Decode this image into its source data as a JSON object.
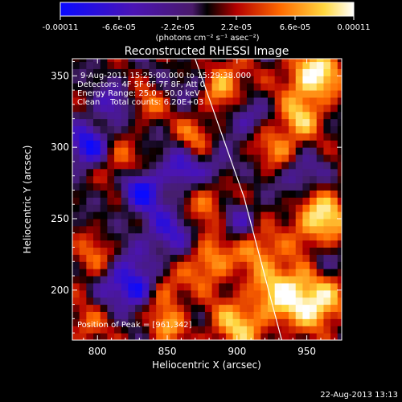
{
  "colorbar": {
    "tick_labels": [
      "-0.00011",
      "-6.6e-05",
      "-2.2e-05",
      "2.2e-05",
      "6.6e-05",
      "0.00011"
    ],
    "unit_label": "(photons cm⁻² s⁻¹ asec⁻²)"
  },
  "chart_data": {
    "type": "heatmap",
    "title": "Reconstructed RHESSI Image",
    "xlabel": "Heliocentric X (arcsec)",
    "ylabel": "Heliocentric Y (arcsec)",
    "xlim": [
      782,
      975
    ],
    "ylim": [
      165,
      362
    ],
    "x_ticks": [
      800,
      850,
      900,
      950
    ],
    "y_ticks": [
      200,
      250,
      300,
      350
    ],
    "value_range": [
      -0.00011,
      0.00011
    ],
    "annotations": [
      "9-Aug-2011 15:25:00.000 to 15:29:38.000",
      "Detectors: 4F 5F 6F 7F 8F, Att 0",
      "Energy Range: 25.0 - 50.0 keV",
      "Clean    Total counts: 6.20E+03"
    ],
    "peak_label": "Position of Peak = [961,342]",
    "peak": [
      961,
      342
    ],
    "marker": [
      834,
      287
    ],
    "limb_line": [
      [
        870,
        362
      ],
      [
        905,
        265
      ],
      [
        932,
        165
      ]
    ]
  },
  "footer": {
    "timestamp": "22-Aug-2013 13:13"
  }
}
